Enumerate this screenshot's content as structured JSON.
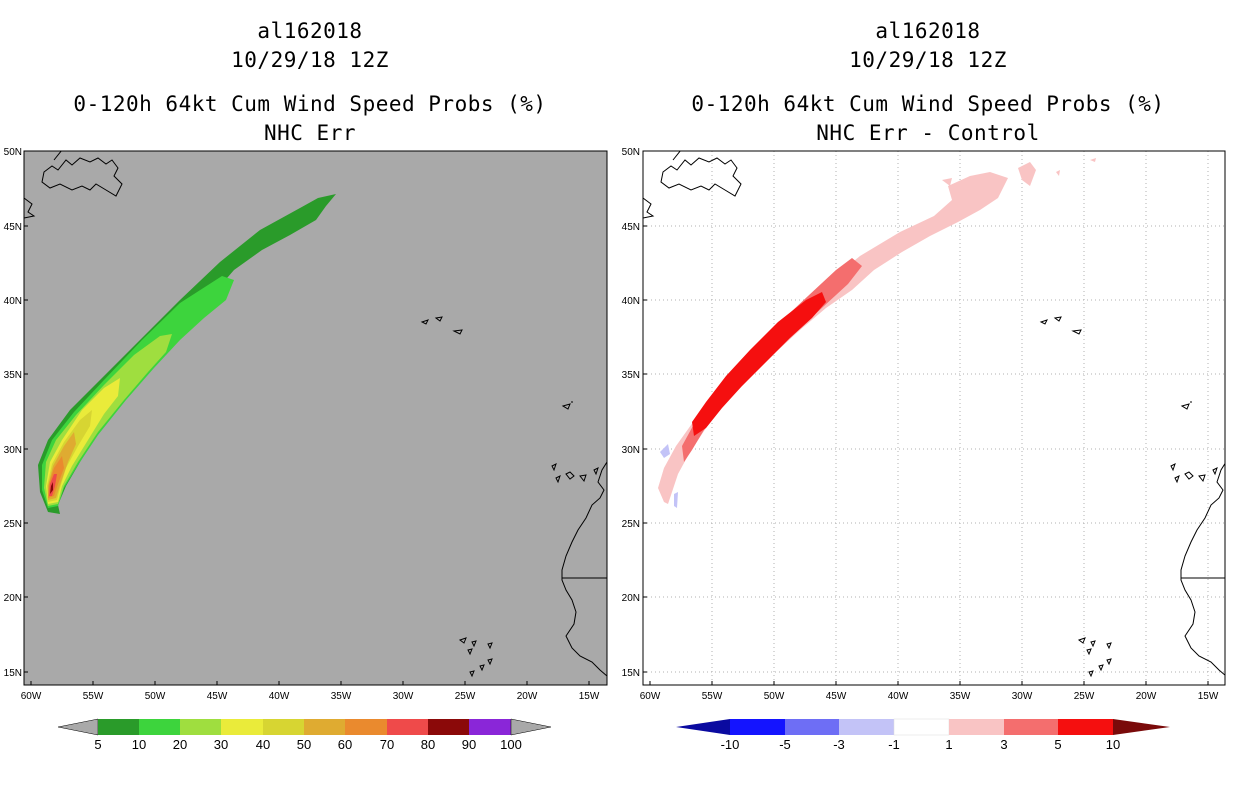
{
  "left_panel": {
    "title_line1": "al162018",
    "title_line2": "10/29/18 12Z",
    "title_line3": "0-120h 64kt Cum Wind Speed Probs (%)",
    "title_line4": "NHC Err",
    "background_color": "#a9a9a9",
    "colorbar_labels": [
      "5",
      "10",
      "20",
      "30",
      "40",
      "50",
      "60",
      "70",
      "80",
      "90",
      "100"
    ],
    "colorbar_colors": [
      "#2a9b2a",
      "#3dd43d",
      "#9fde3f",
      "#eaeb3a",
      "#d7d532",
      "#dfab31",
      "#ea8a2e",
      "#ef4a4a",
      "#8b0909",
      "#8a26d8"
    ],
    "colorbar_end_color": "#a9a9a9"
  },
  "right_panel": {
    "title_line1": "al162018",
    "title_line2": "10/29/18 12Z",
    "title_line3": "0-120h 64kt Cum Wind Speed Probs (%)",
    "title_line4": "NHC Err - Control",
    "background_color": "#ffffff",
    "colorbar_labels": [
      "-10",
      "-5",
      "-3",
      "-1",
      "1",
      "3",
      "5",
      "10"
    ],
    "colorbar_colors": [
      "#1414ff",
      "#6e6ef5",
      "#c3c3f7",
      "#ffffff",
      "#f9c4c4",
      "#f46e6e",
      "#f50f0f"
    ],
    "colorbar_low_end_color": "#0a0aa0",
    "colorbar_high_end_color": "#7a0a0a"
  },
  "axes": {
    "lat_labels": [
      "50N",
      "45N",
      "40N",
      "35N",
      "30N",
      "25N",
      "20N",
      "15N"
    ],
    "lon_labels": [
      "60W",
      "55W",
      "50W",
      "45W",
      "40W",
      "35W",
      "30W",
      "25W",
      "20W",
      "15W"
    ]
  },
  "colors": {
    "coast": "#000000",
    "grid": "#b0b0b0"
  }
}
